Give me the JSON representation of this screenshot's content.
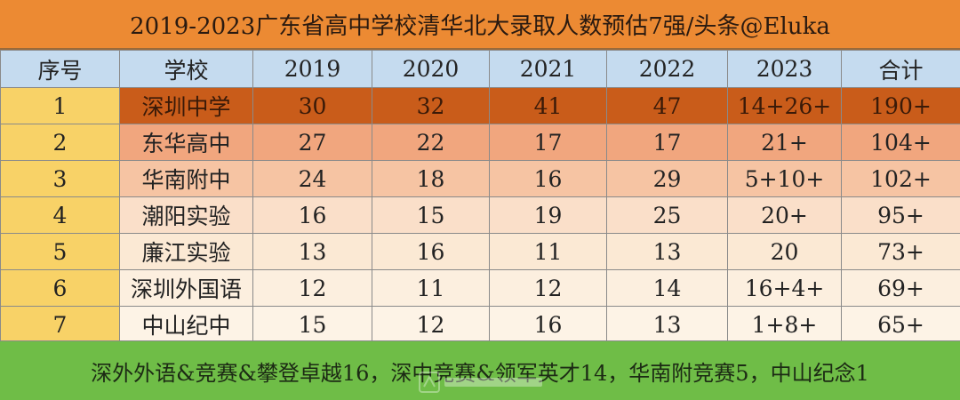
{
  "title": "2019-2023广东省高中学校清华北大录取人数预估7强/头条@Eluka",
  "headers": [
    "序号",
    "学校",
    "2019",
    "2020",
    "2021",
    "2022",
    "2023",
    "合计"
  ],
  "rows": [
    [
      "1",
      "深圳中学",
      "30",
      "32",
      "41",
      "47",
      "14+26+",
      "190+"
    ],
    [
      "2",
      "东华高中",
      "27",
      "22",
      "17",
      "17",
      "21+",
      "104+"
    ],
    [
      "3",
      "华南附中",
      "24",
      "18",
      "16",
      "29",
      "5+10+",
      "102+"
    ],
    [
      "4",
      "潮阳实验",
      "16",
      "15",
      "19",
      "25",
      "20+",
      "95+"
    ],
    [
      "5",
      "廉江实验",
      "13",
      "16",
      "11",
      "13",
      "20",
      "73+"
    ],
    [
      "6",
      "深圳外国语",
      "12",
      "11",
      "12",
      "14",
      "16+4+",
      "69+"
    ],
    [
      "7",
      "中山纪中",
      "15",
      "12",
      "16",
      "13",
      "1+8+",
      "65+"
    ]
  ],
  "footer": "深外外语&竞赛&攀登卓越16，深中竞赛&领军英才14，华南附竞赛5，中山纪念1",
  "colors": {
    "title_bg": "#ec8a33",
    "header_bg": "#c5dbef",
    "seq_bg": "#f8d267",
    "footer_bg": "#6fbd47",
    "row_shades": [
      "#c95c1a",
      "#f1a67e",
      "#f6c4a3",
      "#fadfc9",
      "#fbe9d4",
      "#fcefdf",
      "#fdf3e6"
    ]
  }
}
